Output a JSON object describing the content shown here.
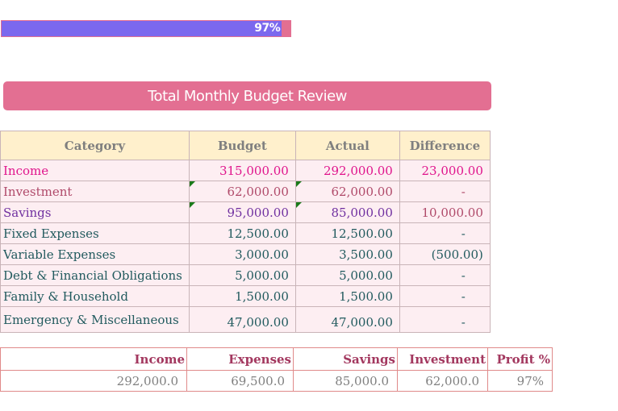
{
  "progress": {
    "label": "97%",
    "value_percent": 97,
    "fill_color": "#7b68ee",
    "track_color": "#e36f92"
  },
  "title": "Total Monthly Budget Review",
  "table": {
    "headers": [
      "Category",
      "Budget",
      "Actual",
      "Difference"
    ],
    "rows": [
      {
        "category": "Income",
        "budget": "315,000.00",
        "actual": "292,000.00",
        "difference": "23,000.00"
      },
      {
        "category": "Investment",
        "budget": "62,000.00",
        "actual": "62,000.00",
        "difference": "-"
      },
      {
        "category": "Savings",
        "budget": "95,000.00",
        "actual": "85,000.00",
        "difference": "10,000.00"
      },
      {
        "category": "Fixed Expenses",
        "budget": "12,500.00",
        "actual": "12,500.00",
        "difference": "-"
      },
      {
        "category": "Variable Expenses",
        "budget": "3,000.00",
        "actual": "3,500.00",
        "difference": "(500.00)"
      },
      {
        "category": "Debt & Financial Obligations",
        "budget": "5,000.00",
        "actual": "5,000.00",
        "difference": "-"
      },
      {
        "category": " Family & Household",
        "budget": "1,500.00",
        "actual": "1,500.00",
        "difference": "-"
      },
      {
        "category": "Emergency & Miscellaneous",
        "budget": "47,000.00",
        "actual": "47,000.00",
        "difference": "-"
      }
    ]
  },
  "summary": {
    "headers": [
      "Income",
      "Expenses",
      "Savings",
      "Investment",
      "Profit %"
    ],
    "values": [
      "292,000.0",
      "69,500.0",
      "85,000.0",
      "62,000.0",
      "97%"
    ]
  }
}
